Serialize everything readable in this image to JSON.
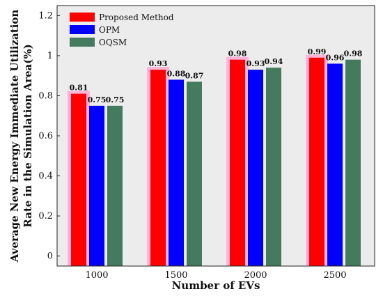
{
  "chart_data": {
    "type": "bar",
    "title": "",
    "xlabel": "Number of EVs",
    "ylabel_line1": "Average New Energy Immediate Utilization",
    "ylabel_line2": "Rate in the Simulation Area(%)",
    "categories": [
      "1000",
      "1500",
      "2000",
      "2500"
    ],
    "ylim": [
      -0.05,
      1.25
    ],
    "yticks": [
      0,
      0.2,
      0.4,
      0.6,
      0.8,
      1,
      1.2
    ],
    "ytick_labels": [
      "0",
      "0.2",
      "0.4",
      "0.6",
      "0.8",
      "1",
      "1.2"
    ],
    "grid": false,
    "legend_position": "top-left",
    "background": "#ececec",
    "series": [
      {
        "name": "Proposed Method",
        "color": "#ff0000",
        "values": [
          0.81,
          0.93,
          0.98,
          0.99
        ],
        "labels": [
          "0.81",
          "0.93",
          "0.98",
          "0.99"
        ]
      },
      {
        "name": "OPM",
        "color": "#0000ff",
        "values": [
          0.75,
          0.88,
          0.93,
          0.96
        ],
        "labels": [
          "0.75",
          "0.88",
          "0.93",
          "0.96"
        ]
      },
      {
        "name": "OQSM",
        "color": "#447a5e",
        "values": [
          0.75,
          0.87,
          0.94,
          0.98
        ],
        "labels": [
          "0.75",
          "0.87",
          "0.94",
          "0.98"
        ]
      }
    ]
  }
}
